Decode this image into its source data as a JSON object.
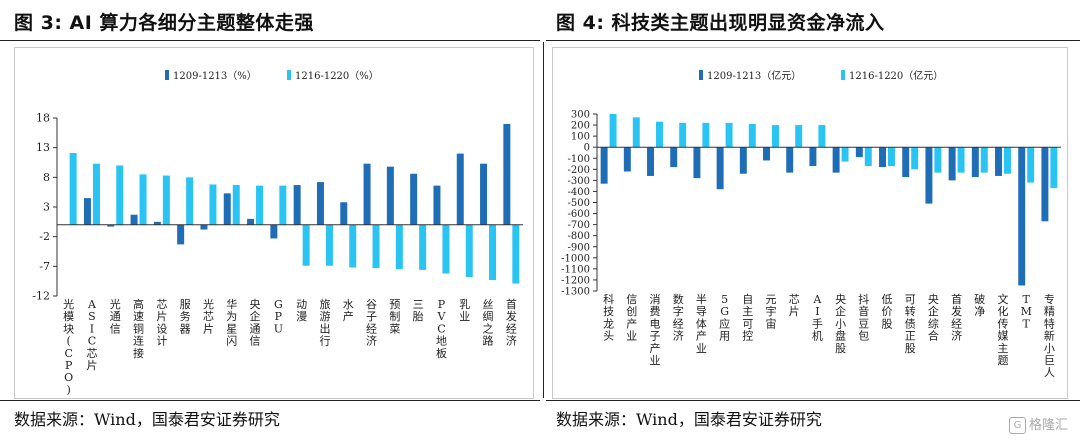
{
  "left": {
    "title": "图 3:  AI 算力各细分主题整体走强",
    "source": "数据来源：Wind，国泰君安证券研究"
  },
  "right": {
    "title": "图 4:  科技类主题出现明显资金净流入",
    "source": "数据来源：Wind，国泰君安证券研究"
  },
  "watermark": "格隆汇",
  "colors": {
    "series1": "#1f6db5",
    "series2": "#29c4f2"
  },
  "chart_data": [
    {
      "type": "bar",
      "title": "",
      "categories": [
        "光模块(CPO)",
        "ASIC芯片",
        "光通信",
        "高速铜连接",
        "芯片设计",
        "服务器",
        "光芯片",
        "华为星闪",
        "央企通信",
        "GPU",
        "动漫",
        "旅游出行",
        "水产",
        "谷子经济",
        "预制菜",
        "三胎",
        "PVC地板",
        "乳业",
        "丝绸之路",
        "首发经济"
      ],
      "series": [
        {
          "name": "1209-1213（%）",
          "values": [
            0,
            4.5,
            -0.3,
            1.7,
            0.5,
            -3.3,
            -0.8,
            5.3,
            1.0,
            -2.3,
            6.7,
            7.2,
            3.8,
            10.3,
            9.8,
            8.6,
            6.6,
            12.0,
            10.3,
            17.0
          ]
        },
        {
          "name": "1216-1220（%）",
          "values": [
            12.1,
            10.3,
            10.0,
            8.5,
            8.3,
            8.0,
            6.8,
            6.7,
            6.6,
            6.6,
            -6.9,
            -6.9,
            -7.2,
            -7.3,
            -7.5,
            -7.6,
            -8.2,
            -8.8,
            -9.3,
            -9.9
          ]
        }
      ],
      "yticks": [
        18,
        13,
        8,
        3,
        -2,
        -7,
        -12
      ],
      "ylim": [
        -12,
        18
      ],
      "legend_position": "top-center",
      "grid": false
    },
    {
      "type": "bar",
      "title": "",
      "categories": [
        "科技龙头",
        "信创产业",
        "消费电子产业",
        "数字经济",
        "半导体产业",
        "5G应用",
        "自主可控",
        "元宇宙",
        "芯片",
        "AI手机",
        "央企小盘股",
        "抖音豆包",
        "低价股",
        "可转债正股",
        "央企综合",
        "首发经济",
        "破净",
        "文化传媒主题",
        "TMT",
        "专精特新小巨人"
      ],
      "series": [
        {
          "name": "1209-1213（亿元）",
          "values": [
            -330,
            -220,
            -260,
            -180,
            -280,
            -380,
            -240,
            -120,
            -230,
            -170,
            -230,
            -90,
            -180,
            -270,
            -510,
            -300,
            -270,
            -260,
            -1250,
            -670
          ]
        },
        {
          "name": "1216-1220（亿元）",
          "values": [
            300,
            270,
            230,
            220,
            220,
            220,
            210,
            200,
            200,
            200,
            -130,
            -170,
            -170,
            -200,
            -230,
            -230,
            -230,
            -240,
            -320,
            -370
          ]
        }
      ],
      "yticks": [
        300,
        200,
        100,
        0,
        -100,
        -200,
        -300,
        -400,
        -500,
        -600,
        -700,
        -800,
        -900,
        -1000,
        -1100,
        -1200,
        -1300
      ],
      "ytick_labels": [
        "300",
        "200",
        "100",
        "0",
        "-100",
        "-200",
        "-300",
        "-400",
        "-500",
        "-600",
        "-700",
        "-800",
        "-900",
        "-1000",
        "-1100",
        "-1200",
        "-1300"
      ],
      "ylim": [
        -1300,
        300
      ],
      "legend_position": "top-center",
      "grid": false
    }
  ]
}
